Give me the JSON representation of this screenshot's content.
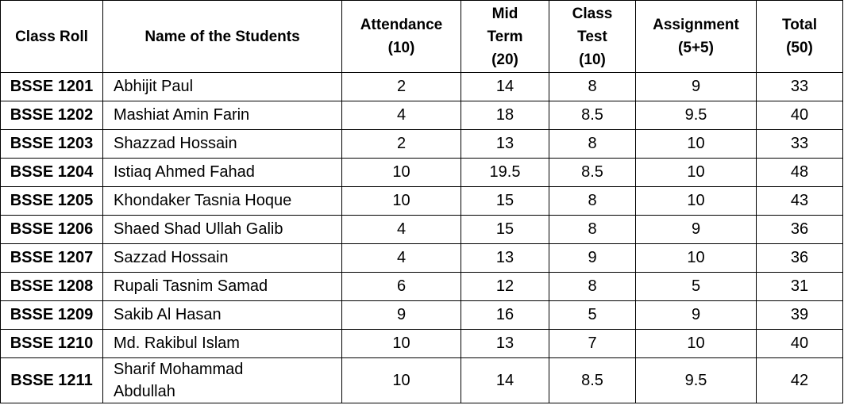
{
  "table": {
    "headers": [
      "Class Roll",
      "Name of the Students",
      "Attendance (10)",
      "Mid Term (20)",
      "Class Test (10)",
      "Assignment (5+5)",
      "Total (50)"
    ],
    "rows": [
      [
        "BSSE 1201",
        "Abhijit Paul",
        "2",
        "14",
        "8",
        "9",
        "33"
      ],
      [
        "BSSE 1202",
        "Mashiat Amin Farin",
        "4",
        "18",
        "8.5",
        "9.5",
        "40"
      ],
      [
        "BSSE 1203",
        "Shazzad Hossain",
        "2",
        "13",
        "8",
        "10",
        "33"
      ],
      [
        "BSSE 1204",
        "Istiaq Ahmed Fahad",
        "10",
        "19.5",
        "8.5",
        "10",
        "48"
      ],
      [
        "BSSE 1205",
        "Khondaker Tasnia Hoque",
        "10",
        "15",
        "8",
        "10",
        "43"
      ],
      [
        "BSSE 1206",
        "Shaed Shad Ullah Galib",
        "4",
        "15",
        "8",
        "9",
        "36"
      ],
      [
        "BSSE 1207",
        "Sazzad Hossain",
        "4",
        "13",
        "9",
        "10",
        "36"
      ],
      [
        "BSSE 1208",
        "Rupali Tasnim Samad",
        "6",
        "12",
        "8",
        "5",
        "31"
      ],
      [
        "BSSE 1209",
        "Sakib Al Hasan",
        "9",
        "16",
        "5",
        "9",
        "39"
      ],
      [
        "BSSE 1210",
        "Md. Rakibul Islam",
        "10",
        "13",
        "7",
        "10",
        "40"
      ],
      [
        "BSSE 1211",
        "Sharif Mohammad Abdullah",
        "10",
        "14",
        "8.5",
        "9.5",
        "42"
      ]
    ]
  }
}
